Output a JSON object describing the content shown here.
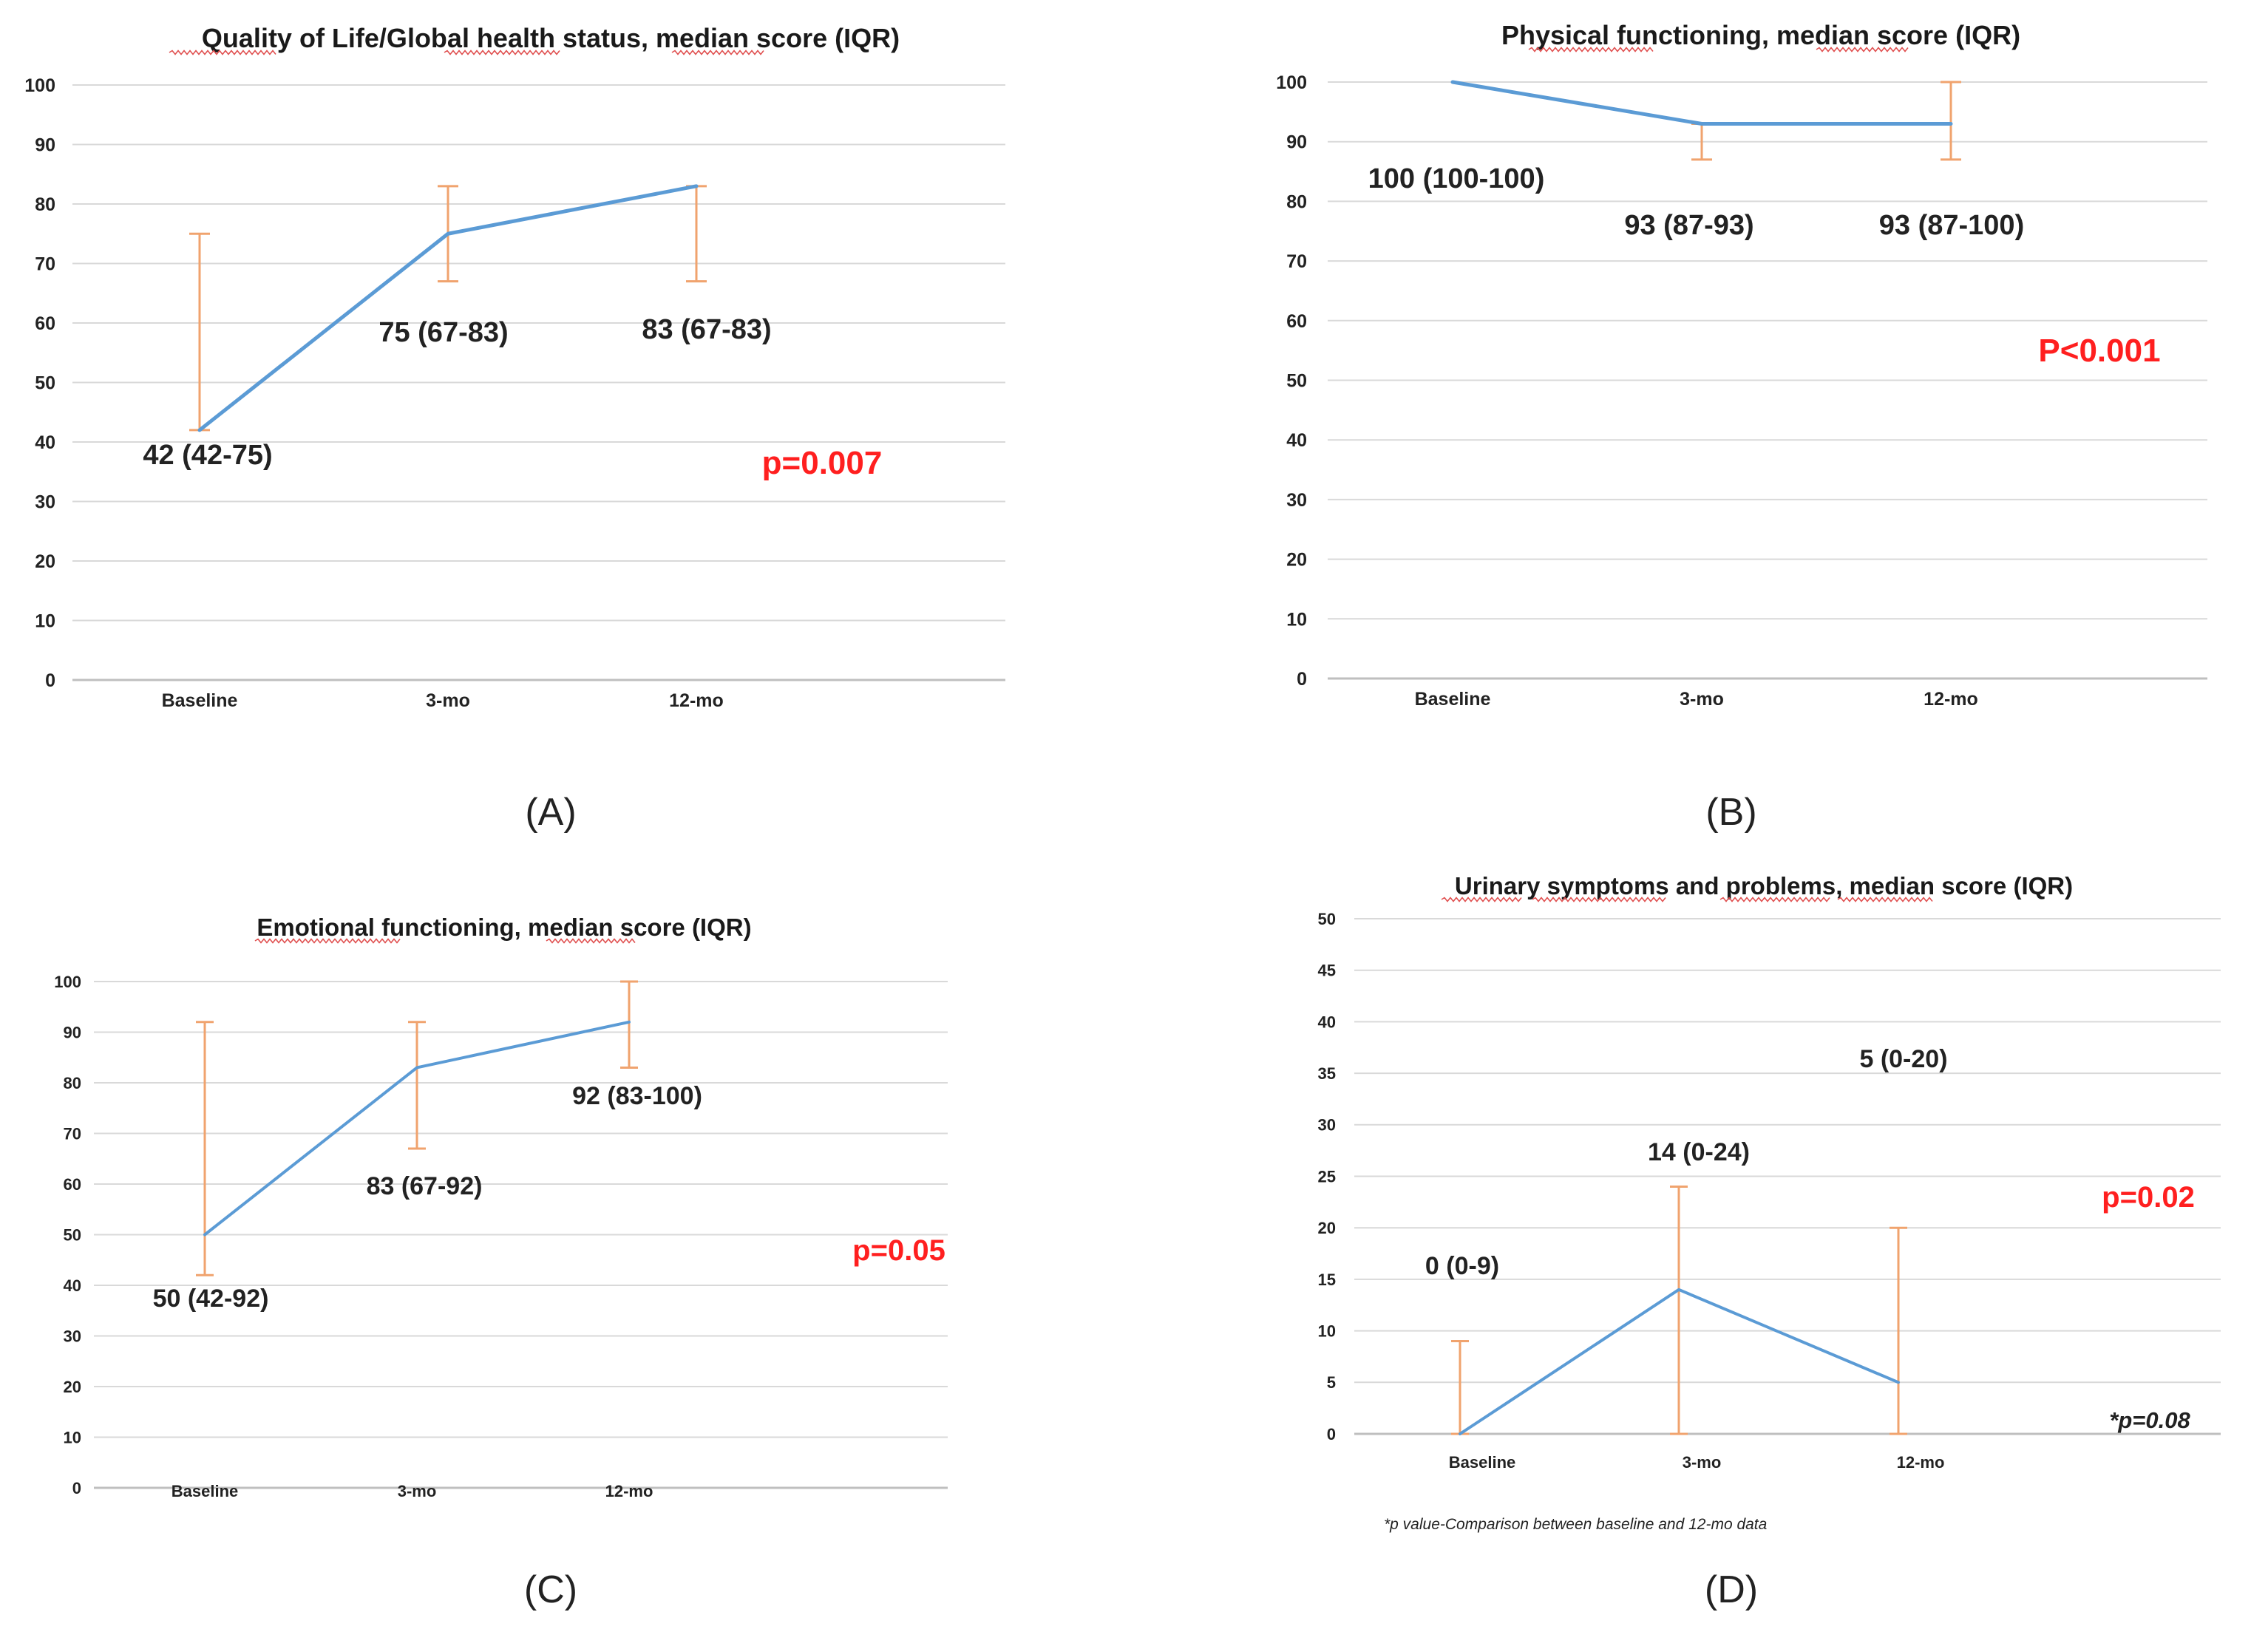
{
  "colors": {
    "line": "#5b9bd5",
    "errorbar": "#f0a36e",
    "grid": "#d9d9d9",
    "axis": "#bfbfbf",
    "text": "#222222",
    "pvalue": "#ff1f1f",
    "squiggle": "#e05050"
  },
  "chart_data": [
    {
      "type": "line",
      "title": "Quality of Life/Global health status, median score (IQR)",
      "panel_label": "(A)",
      "categories": [
        "Baseline",
        "3-mo",
        "12-mo"
      ],
      "series": [
        {
          "name": "median",
          "values": [
            42,
            75,
            83
          ]
        }
      ],
      "iqr_low": [
        42,
        67,
        67
      ],
      "iqr_high": [
        75,
        83,
        83
      ],
      "ylim": [
        0,
        100
      ],
      "yticks": [
        0,
        10,
        20,
        30,
        40,
        50,
        60,
        70,
        80,
        90,
        100
      ],
      "data_labels": [
        "42 (42-75)",
        "75 (67-83)",
        "83 (67-83)"
      ],
      "p_value": "p=0.007",
      "grid": true
    },
    {
      "type": "line",
      "title": "Physical functioning, median score (IQR)",
      "panel_label": "(B)",
      "categories": [
        "Baseline",
        "3-mo",
        "12-mo"
      ],
      "series": [
        {
          "name": "median",
          "values": [
            100,
            93,
            93
          ]
        }
      ],
      "iqr_low": [
        100,
        87,
        87
      ],
      "iqr_high": [
        100,
        93,
        100
      ],
      "ylim": [
        0,
        100
      ],
      "yticks": [
        0,
        10,
        20,
        30,
        40,
        50,
        60,
        70,
        80,
        90,
        100
      ],
      "data_labels": [
        "100 (100-100)",
        "93 (87-93)",
        "93 (87-100)"
      ],
      "p_value": "P<0.001",
      "grid": true
    },
    {
      "type": "line",
      "title": "Emotional functioning, median score (IQR)",
      "panel_label": "(C)",
      "categories": [
        "Baseline",
        "3-mo",
        "12-mo"
      ],
      "series": [
        {
          "name": "median",
          "values": [
            50,
            83,
            92
          ]
        }
      ],
      "iqr_low": [
        42,
        67,
        83
      ],
      "iqr_high": [
        92,
        92,
        100
      ],
      "ylim": [
        0,
        100
      ],
      "yticks": [
        0,
        10,
        20,
        30,
        40,
        50,
        60,
        70,
        80,
        90,
        100
      ],
      "data_labels": [
        "50 (42-92)",
        "83 (67-92)",
        "92 (83-100)"
      ],
      "p_value": "p=0.05",
      "grid": true
    },
    {
      "type": "line",
      "title": "Urinary symptoms and problems, median score (IQR)",
      "panel_label": "(D)",
      "categories": [
        "Baseline",
        "3-mo",
        "12-mo"
      ],
      "series": [
        {
          "name": "median",
          "values": [
            0,
            14,
            5
          ]
        }
      ],
      "iqr_low": [
        0,
        0,
        0
      ],
      "iqr_high": [
        9,
        24,
        20
      ],
      "ylim": [
        0,
        50
      ],
      "yticks": [
        0,
        5,
        10,
        15,
        20,
        25,
        30,
        35,
        40,
        45,
        50
      ],
      "data_labels": [
        "0 (0-9)",
        "14 (0-24)",
        "5 (0-20)"
      ],
      "p_value": "p=0.02",
      "p_value_2": "*p=0.08",
      "footnote": "*p value-Comparison between baseline and 12-mo data",
      "grid": true
    }
  ]
}
